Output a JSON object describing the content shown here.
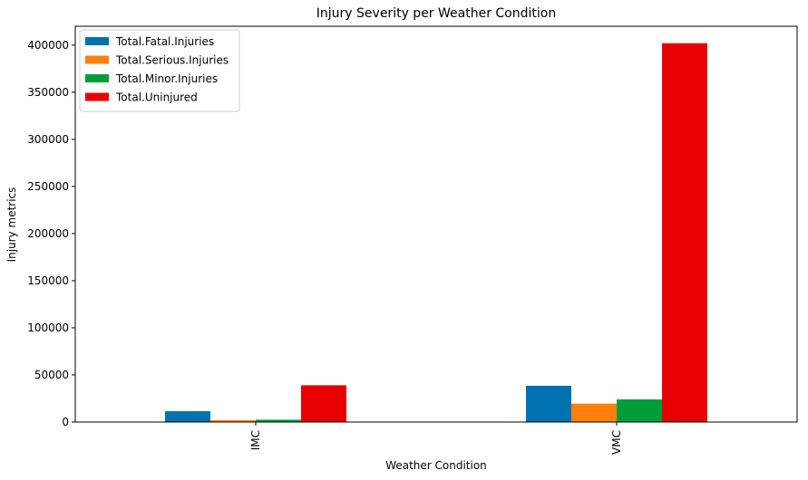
{
  "chart_data": {
    "type": "bar",
    "title": "Injury Severity per Weather Condition",
    "xlabel": "Weather Condition",
    "ylabel": "Injury metrics",
    "categories": [
      "IMC",
      "VMC"
    ],
    "ylim": [
      0,
      420000
    ],
    "yticks": [
      0,
      50000,
      100000,
      150000,
      200000,
      250000,
      300000,
      350000,
      400000
    ],
    "ytick_labels": [
      "0",
      "50000",
      "100000",
      "150000",
      "200000",
      "250000",
      "300000",
      "350000",
      "400000"
    ],
    "legend_position": "top-left",
    "grid": false,
    "series": [
      {
        "name": "Total.Fatal.Injuries",
        "color": "#0072b2",
        "values": [
          11500,
          38500
        ]
      },
      {
        "name": "Total.Serious.Injuries",
        "color": "#ff7f0e",
        "values": [
          2000,
          19500
        ]
      },
      {
        "name": "Total.Minor.Injuries",
        "color": "#009e3a",
        "values": [
          2500,
          24000
        ]
      },
      {
        "name": "Total.Uninjured",
        "color": "#e60000",
        "values": [
          39000,
          402000
        ]
      }
    ]
  }
}
